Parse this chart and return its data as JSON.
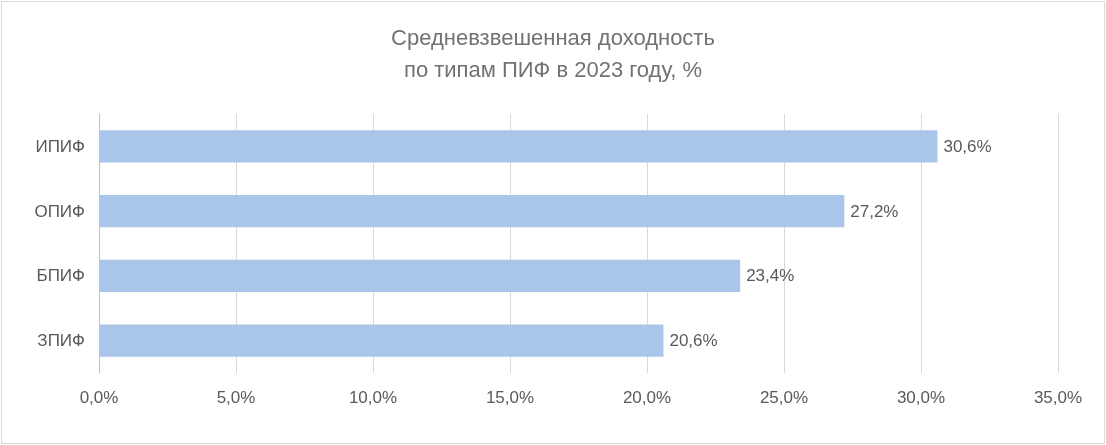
{
  "chart_data": {
    "type": "bar",
    "orientation": "horizontal",
    "title": "Средневзвешенная доходность\nпо типам ПИФ в 2023 году, %",
    "categories": [
      "ИПИФ",
      "ОПИФ",
      "БПИФ",
      "ЗПИФ"
    ],
    "values": [
      30.6,
      27.2,
      23.4,
      20.6
    ],
    "value_labels": [
      "30,6%",
      "27,2%",
      "23,4%",
      "20,6%"
    ],
    "color": "#a9c6ea",
    "xlim": [
      0,
      35
    ],
    "xticks": [
      {
        "value": 0,
        "label": "0,0%"
      },
      {
        "value": 5,
        "label": "5,0%"
      },
      {
        "value": 10,
        "label": "10,0%"
      },
      {
        "value": 15,
        "label": "15,0%"
      },
      {
        "value": 20,
        "label": "20,0%"
      },
      {
        "value": 25,
        "label": "25,0%"
      },
      {
        "value": 30,
        "label": "30,0%"
      },
      {
        "value": 35,
        "label": "35,0%"
      }
    ],
    "grid": "x"
  }
}
